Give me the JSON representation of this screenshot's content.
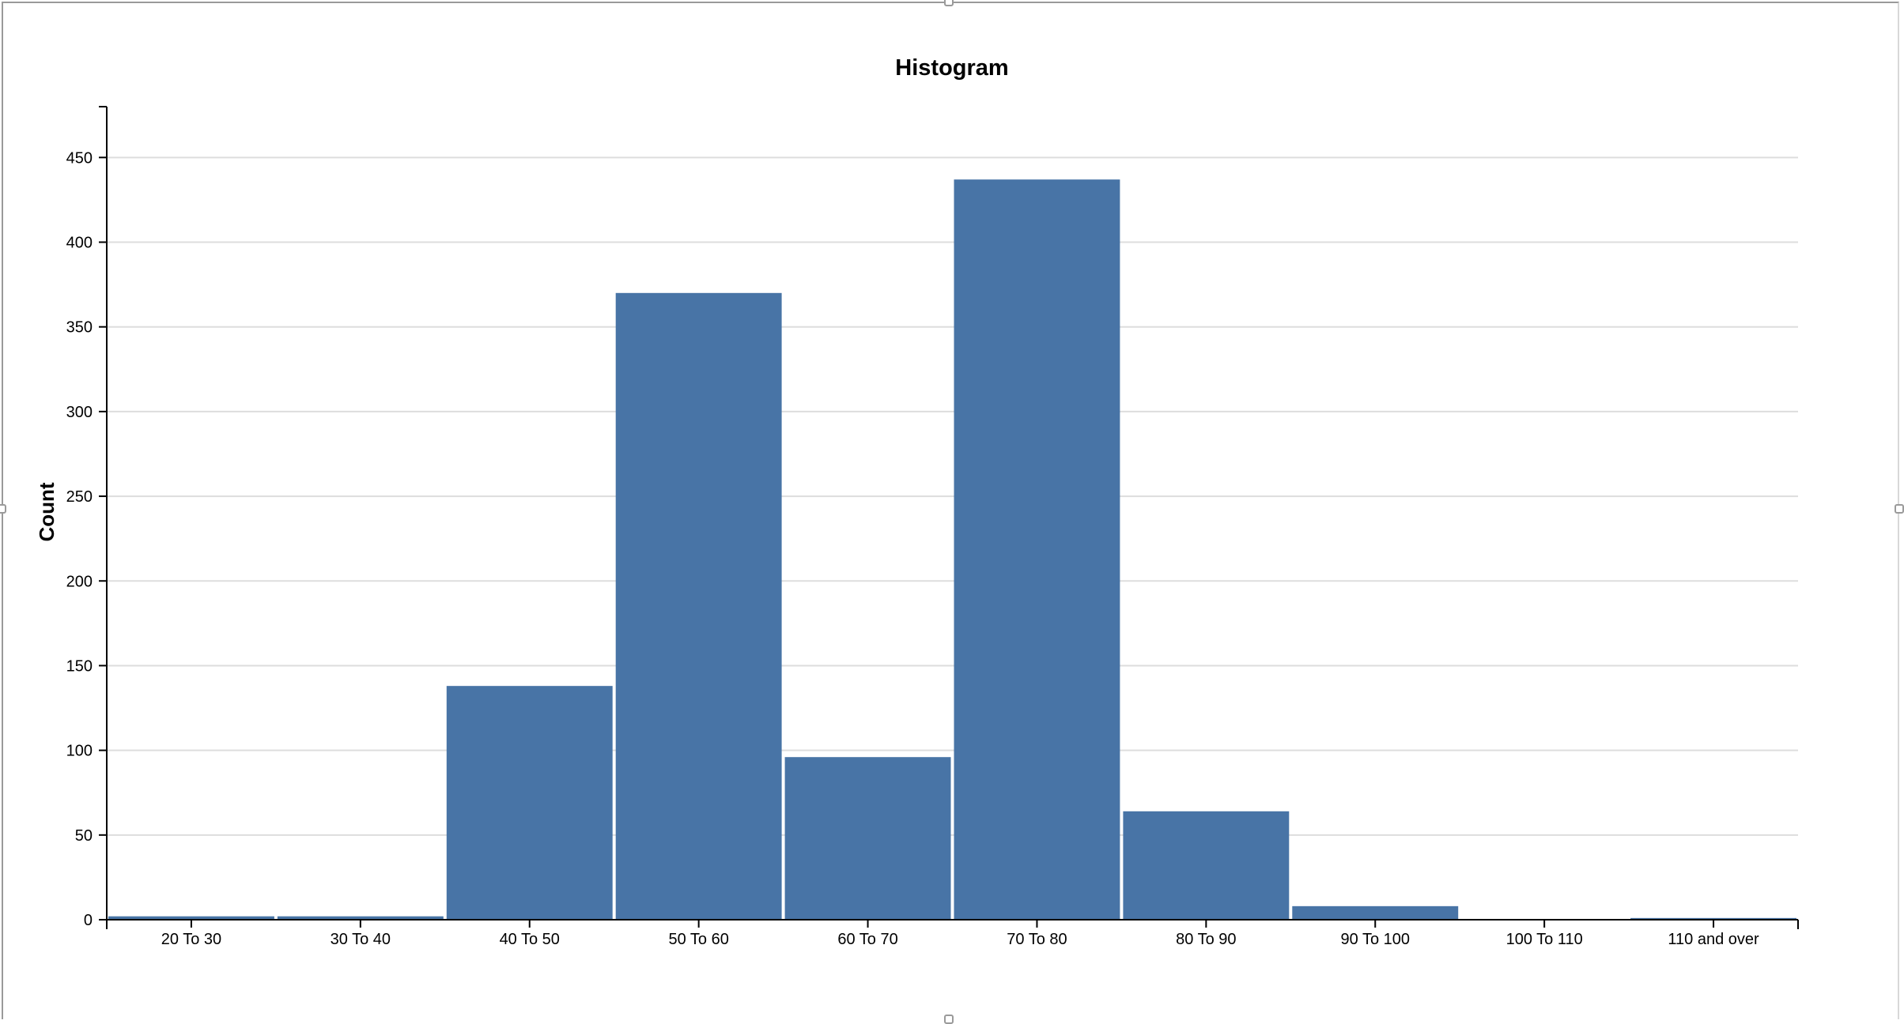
{
  "chart_data": {
    "type": "bar",
    "title": "Histogram",
    "xlabel": "",
    "ylabel": "Count",
    "categories": [
      "20 To 30",
      "30 To 40",
      "40 To 50",
      "50 To 60",
      "60 To 70",
      "70 To 80",
      "80 To 90",
      "90 To 100",
      "100 To 110",
      "110 and over"
    ],
    "values": [
      2,
      2,
      138,
      370,
      96,
      437,
      64,
      8,
      0,
      1
    ],
    "ylim": [
      0,
      480
    ],
    "yticks": [
      0,
      50,
      100,
      150,
      200,
      250,
      300,
      350,
      400,
      450
    ],
    "grid": true,
    "bar_color": "#4874a6"
  },
  "colors": {
    "bar": "#4874a6",
    "grid": "#dddddd",
    "axis": "#000000"
  }
}
